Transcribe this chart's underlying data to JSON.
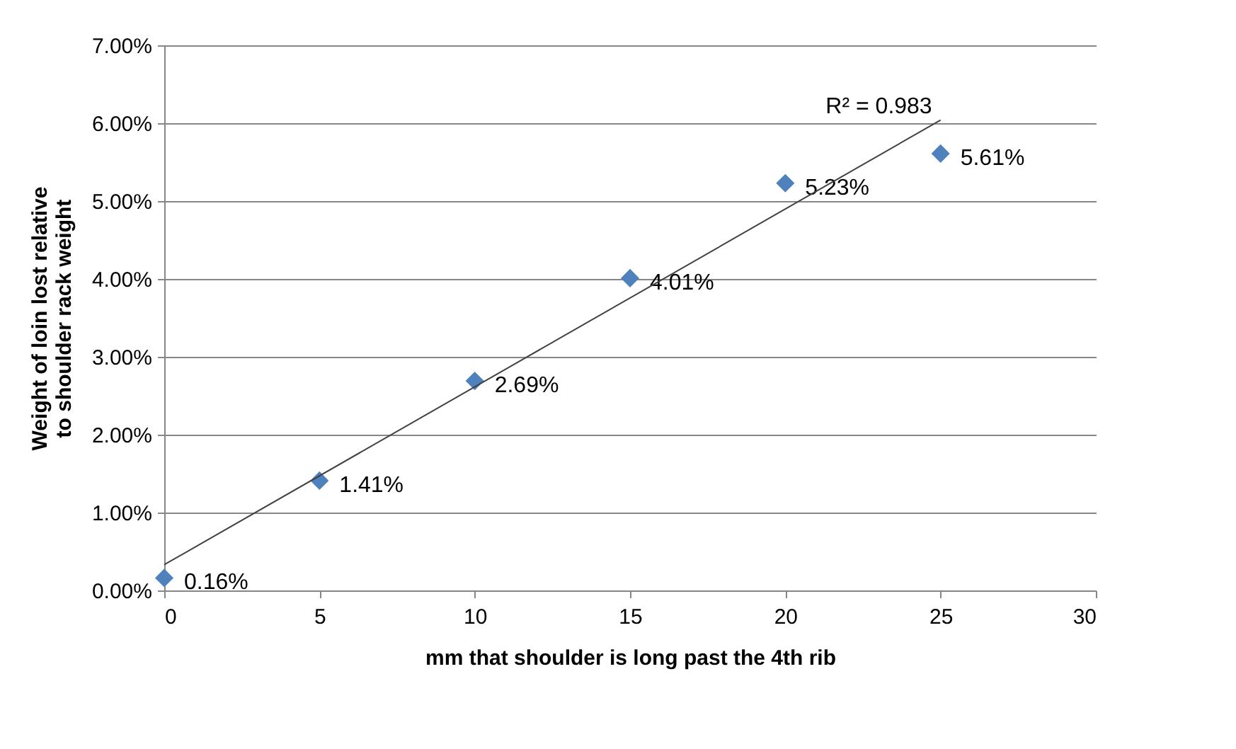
{
  "chart_data": {
    "type": "scatter",
    "xlabel": "mm that shoulder is long past the 4th rib",
    "ylabel": "Weight of loin lost relative to shoulder rack weight",
    "x": [
      0,
      5,
      10,
      15,
      20,
      25
    ],
    "series": [
      {
        "color": "#4f81bd",
        "marker": "diamond",
        "values": [
          0.16,
          1.41,
          2.69,
          4.01,
          5.23,
          5.61
        ],
        "value_labels": [
          "0.16%",
          "1.41%",
          "2.69%",
          "4.01%",
          "5.23%",
          "5.61%"
        ]
      },
      {
        "type": "line",
        "color": "#404040",
        "marker": "none",
        "line_style": "solid",
        "x": [
          0,
          25
        ],
        "values": [
          0.33,
          6.04
        ]
      }
    ],
    "annotations": [
      {
        "text": "R² = 0.983",
        "x": 25,
        "y": 6.04
      }
    ],
    "xlim": [
      0,
      30
    ],
    "xticks": [
      0,
      5,
      10,
      15,
      20,
      25,
      30
    ],
    "ylim": [
      0,
      7
    ],
    "yticks": [
      {
        "value": 0,
        "label": "0.00%"
      },
      {
        "value": 1,
        "label": "1.00%"
      },
      {
        "value": 2,
        "label": "2.00%"
      },
      {
        "value": 3,
        "label": "3.00%"
      },
      {
        "value": 4,
        "label": "4.00%"
      },
      {
        "value": 5,
        "label": "5.00%"
      },
      {
        "value": 6,
        "label": "6.00%"
      },
      {
        "value": 7,
        "label": "7.00%"
      }
    ],
    "grid": "y"
  }
}
